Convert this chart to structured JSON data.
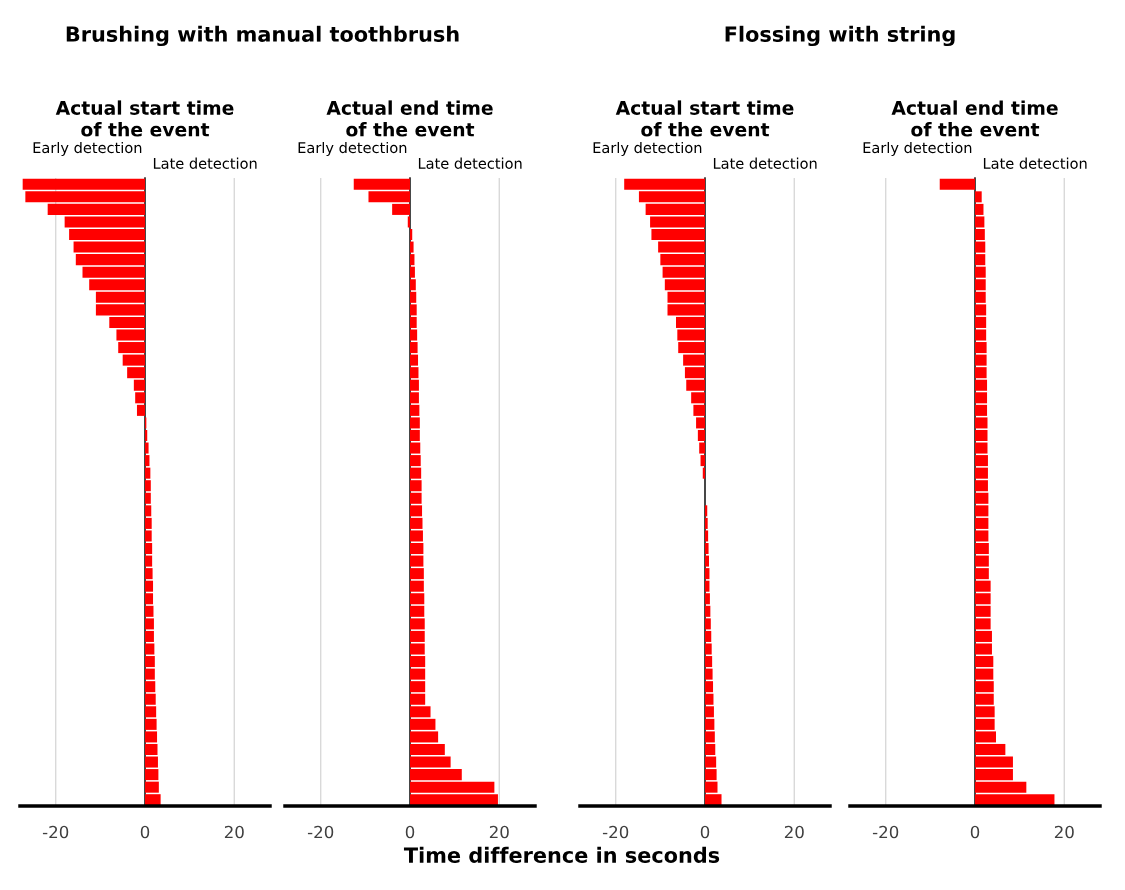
{
  "chart_data": [
    {
      "type": "bar",
      "orientation": "horizontal",
      "title": "Actual start time\nof the event",
      "annotations": [
        "Brushing with manual toothbrush",
        "Early detection",
        "Late detection"
      ],
      "color": "#ff0000",
      "grid": "x",
      "xlim": [
        -28,
        28
      ],
      "xticks": [
        -20,
        0,
        20
      ],
      "tick_labels": "x",
      "categories": [
        null,
        null,
        null,
        null,
        null,
        null,
        null,
        null,
        null,
        null,
        null,
        null,
        null,
        null,
        null,
        null,
        null,
        null,
        null,
        null,
        null,
        null,
        null,
        null,
        null,
        null,
        null,
        null,
        null,
        null,
        null,
        null,
        null,
        null,
        null,
        null,
        null,
        null,
        null,
        null,
        null,
        null,
        null,
        null,
        null,
        null,
        null,
        null,
        null,
        null
      ],
      "values": [
        -27.4,
        -26.8,
        -21.8,
        -18,
        -17,
        -16,
        -15.5,
        -14,
        -12.5,
        -11,
        -11,
        -8,
        -6.4,
        -6,
        -5,
        -4,
        -2.5,
        -2.2,
        -1.8,
        0.3,
        0.5,
        0.8,
        1,
        1.2,
        1.3,
        1.3,
        1.4,
        1.5,
        1.5,
        1.6,
        1.6,
        1.7,
        1.8,
        1.8,
        1.9,
        2,
        2,
        2.1,
        2.2,
        2.2,
        2.3,
        2.4,
        2.5,
        2.6,
        2.7,
        2.8,
        2.9,
        3,
        3.1,
        3.5
      ]
    },
    {
      "type": "bar",
      "orientation": "horizontal",
      "title": "Actual end time\nof the event",
      "xlabel": "Time difference in seconds",
      "annotations": [
        "Early detection",
        "Late detection"
      ],
      "color": "#ff0000",
      "grid": "x",
      "xlim": [
        -28,
        28
      ],
      "xticks": [
        -20,
        0,
        20
      ],
      "tick_labels": "x",
      "categories": [
        null,
        null,
        null,
        null,
        null,
        null,
        null,
        null,
        null,
        null,
        null,
        null,
        null,
        null,
        null,
        null,
        null,
        null,
        null,
        null,
        null,
        null,
        null,
        null,
        null,
        null,
        null,
        null,
        null,
        null,
        null,
        null,
        null,
        null,
        null,
        null,
        null,
        null,
        null,
        null,
        null,
        null,
        null,
        null,
        null,
        null,
        null,
        null,
        null,
        null
      ],
      "values": [
        -12.6,
        -9.3,
        -4,
        -0.5,
        0.5,
        0.8,
        1,
        1.1,
        1.3,
        1.4,
        1.5,
        1.5,
        1.6,
        1.7,
        1.8,
        1.9,
        2,
        2,
        2.1,
        2.2,
        2.2,
        2.3,
        2.4,
        2.5,
        2.6,
        2.6,
        2.7,
        2.8,
        2.9,
        3,
        3,
        3.1,
        3.1,
        3.2,
        3.2,
        3.3,
        3.3,
        3.3,
        3.4,
        3.4,
        3.4,
        3.4,
        4.6,
        5.7,
        6.3,
        7.8,
        9.1,
        11.6,
        18.9,
        19.7
      ]
    },
    {
      "type": "bar",
      "orientation": "horizontal",
      "title": "Actual start time\nof the event",
      "annotations": [
        "Flossing with string",
        "Early detection",
        "Late detection"
      ],
      "color": "#ff0000",
      "grid": "x",
      "xlim": [
        -28,
        28
      ],
      "xticks": [
        -20,
        0,
        20
      ],
      "tick_labels": "x",
      "categories": [
        null,
        null,
        null,
        null,
        null,
        null,
        null,
        null,
        null,
        null,
        null,
        null,
        null,
        null,
        null,
        null,
        null,
        null,
        null,
        null,
        null,
        null,
        null,
        null,
        null,
        null,
        null,
        null,
        null,
        null,
        null,
        null,
        null,
        null,
        null,
        null,
        null,
        null,
        null,
        null,
        null,
        null,
        null,
        null,
        null,
        null,
        null,
        null,
        null,
        null
      ],
      "values": [
        -18.1,
        -14.8,
        -13.3,
        -12.3,
        -12,
        -10.5,
        -10,
        -9.5,
        -9,
        -8.4,
        -8.4,
        -6.5,
        -6.2,
        -6,
        -4.9,
        -4.5,
        -4.2,
        -3.1,
        -2.6,
        -2,
        -1.6,
        -1.3,
        -1,
        -0.5,
        0,
        0,
        0.5,
        0.6,
        0.7,
        0.8,
        0.9,
        1,
        1,
        1.1,
        1.2,
        1.3,
        1.4,
        1.5,
        1.6,
        1.7,
        1.8,
        1.9,
        2,
        2.1,
        2.2,
        2.3,
        2.5,
        2.6,
        2.8,
        3.7
      ]
    },
    {
      "type": "bar",
      "orientation": "horizontal",
      "title": "Actual end time\nof the event",
      "annotations": [
        "Early detection",
        "Late detection"
      ],
      "color": "#ff0000",
      "grid": "x",
      "xlim": [
        -28,
        28
      ],
      "xticks": [
        -20,
        0,
        20
      ],
      "tick_labels": "x",
      "categories": [
        null,
        null,
        null,
        null,
        null,
        null,
        null,
        null,
        null,
        null,
        null,
        null,
        null,
        null,
        null,
        null,
        null,
        null,
        null,
        null,
        null,
        null,
        null,
        null,
        null,
        null,
        null,
        null,
        null,
        null,
        null,
        null,
        null,
        null,
        null,
        null,
        null,
        null,
        null,
        null,
        null,
        null,
        null,
        null,
        null,
        null,
        null,
        null,
        null,
        null
      ],
      "values": [
        -7.9,
        1.5,
        1.9,
        2.1,
        2.2,
        2.3,
        2.3,
        2.4,
        2.4,
        2.4,
        2.5,
        2.5,
        2.5,
        2.6,
        2.6,
        2.6,
        2.7,
        2.7,
        2.7,
        2.8,
        2.8,
        2.8,
        2.9,
        2.9,
        2.9,
        3,
        3,
        3,
        3,
        3.1,
        3.1,
        3.1,
        3.5,
        3.5,
        3.5,
        3.5,
        3.8,
        3.8,
        4.1,
        4.1,
        4.2,
        4.2,
        4.4,
        4.4,
        4.7,
        6.8,
        8.5,
        8.5,
        11.5,
        17.8
      ]
    }
  ]
}
